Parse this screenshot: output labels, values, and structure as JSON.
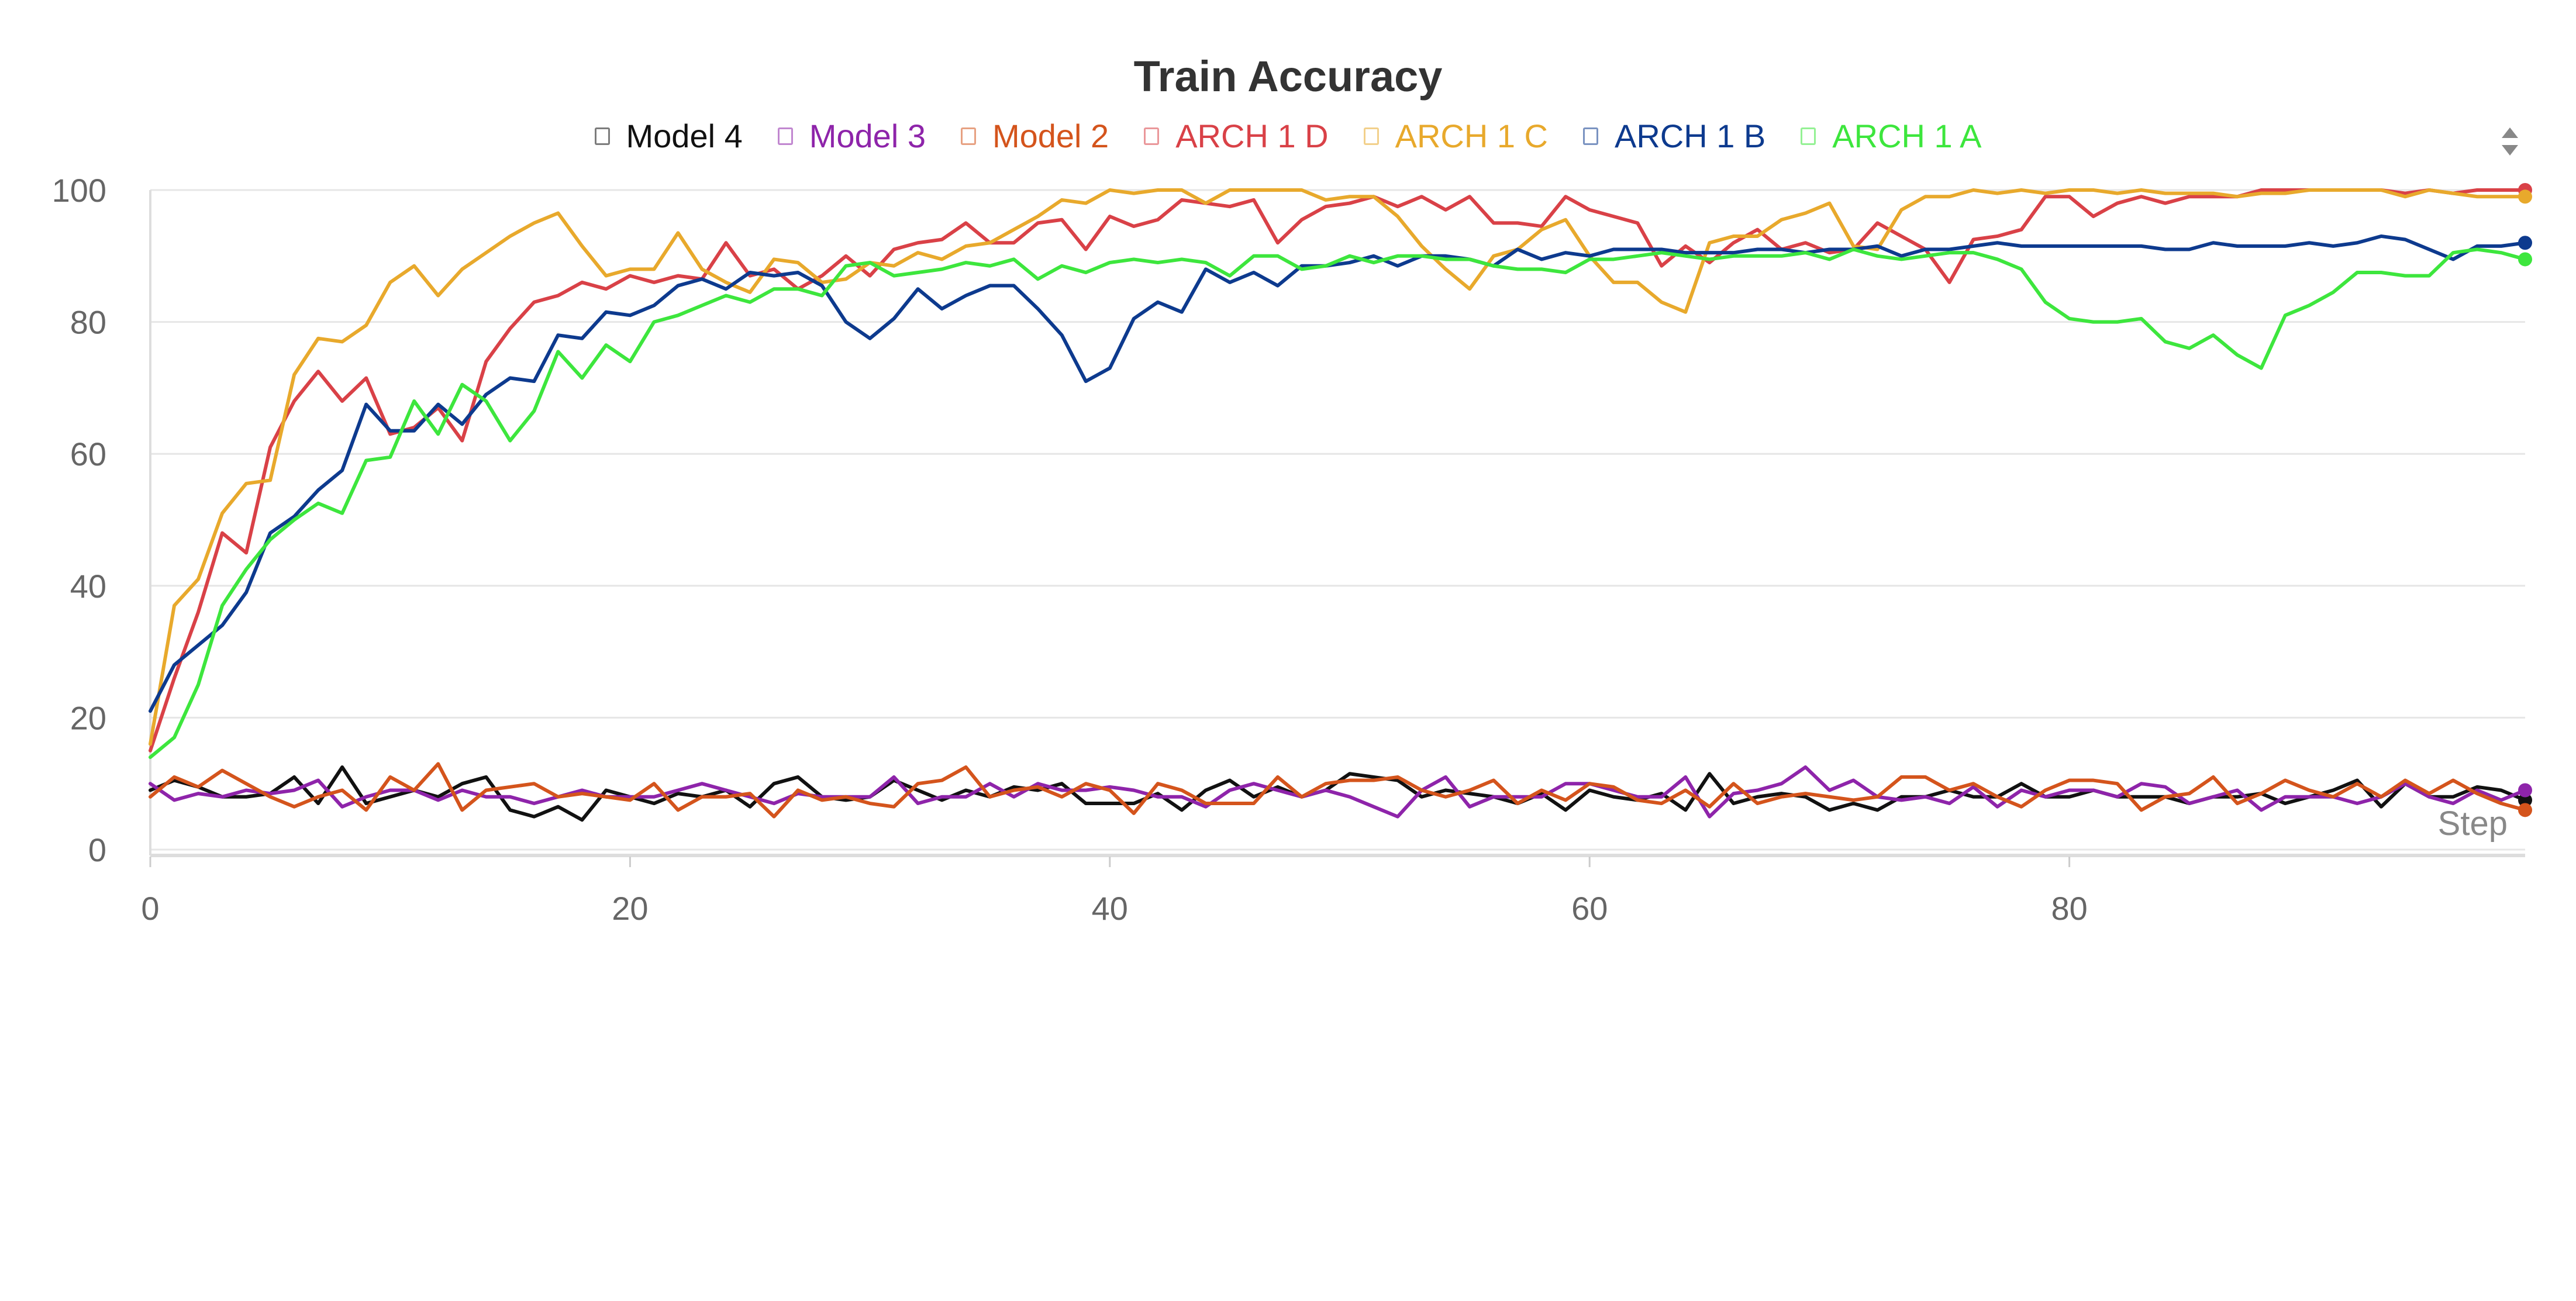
{
  "chart_data": {
    "type": "line",
    "title": "Train Accuracy",
    "xlabel": "Step",
    "ylabel": "",
    "xlim": [
      0,
      99
    ],
    "ylim": [
      0,
      100
    ],
    "xticks": [
      0,
      20,
      40,
      60,
      80
    ],
    "yticks": [
      0,
      20,
      40,
      60,
      80,
      100
    ],
    "grid": true,
    "legend_position": "top-center",
    "x": [
      0,
      1,
      2,
      3,
      4,
      5,
      6,
      7,
      8,
      9,
      10,
      11,
      12,
      13,
      14,
      15,
      16,
      17,
      18,
      19,
      20,
      21,
      22,
      23,
      24,
      25,
      26,
      27,
      28,
      29,
      30,
      31,
      32,
      33,
      34,
      35,
      36,
      37,
      38,
      39,
      40,
      41,
      42,
      43,
      44,
      45,
      46,
      47,
      48,
      49,
      50,
      51,
      52,
      53,
      54,
      55,
      56,
      57,
      58,
      59,
      60,
      61,
      62,
      63,
      64,
      65,
      66,
      67,
      68,
      69,
      70,
      71,
      72,
      73,
      74,
      75,
      76,
      77,
      78,
      79,
      80,
      81,
      82,
      83,
      84,
      85,
      86,
      87,
      88,
      89,
      90,
      91,
      92,
      93,
      94,
      95,
      96,
      97,
      98,
      99
    ],
    "series": [
      {
        "name": "Model 4",
        "color": "#111111",
        "values": [
          9,
          10.5,
          9.5,
          8,
          8,
          8.5,
          11,
          7,
          12.5,
          7,
          8,
          9,
          8,
          10,
          11,
          6,
          5,
          6.5,
          4.5,
          9,
          8,
          7,
          8.5,
          8,
          9,
          6.5,
          10,
          11,
          8,
          7.5,
          8,
          10.5,
          9,
          7.5,
          9,
          8,
          9.5,
          9,
          10,
          7,
          7,
          7,
          8.5,
          6,
          9,
          10.5,
          8,
          9.5,
          8,
          9,
          11.5,
          11,
          10.5,
          8,
          9,
          8.5,
          8,
          7,
          8.5,
          6,
          9,
          8,
          7.5,
          8.5,
          6,
          11.5,
          7,
          8,
          8.5,
          8,
          6,
          7,
          6,
          8,
          8,
          9,
          8,
          8,
          10,
          8,
          8,
          9,
          8,
          8,
          8,
          7,
          8,
          8,
          8.5,
          7,
          8,
          9,
          10.5,
          6.5,
          10,
          8,
          8,
          9.5,
          9,
          7.5
        ]
      },
      {
        "name": "Model 3",
        "color": "#8e24aa",
        "values": [
          10,
          7.5,
          8.5,
          8,
          9,
          8.5,
          9,
          10.5,
          6.5,
          8,
          9,
          9,
          7.5,
          9,
          8,
          8,
          7,
          8,
          9,
          8,
          8,
          8,
          9,
          10,
          9,
          8,
          7,
          8.5,
          8,
          8,
          8,
          11,
          7,
          8,
          8,
          10,
          8,
          10,
          9,
          9,
          9.5,
          9,
          8,
          8,
          6.5,
          9,
          10,
          9,
          8,
          9,
          8,
          6.5,
          5,
          9,
          11,
          6.5,
          8,
          8,
          8,
          10,
          10,
          9,
          8,
          8,
          11,
          5,
          8.5,
          9,
          10,
          12.5,
          9,
          10.5,
          8,
          7.5,
          8,
          7,
          9.5,
          6.5,
          9,
          8,
          9,
          9,
          8,
          10,
          9.5,
          7,
          8,
          9,
          6,
          8,
          8,
          8,
          7,
          8,
          10,
          8,
          7,
          9,
          7.5,
          9
        ]
      },
      {
        "name": "Model 2",
        "color": "#d4541c",
        "values": [
          8,
          11,
          9.5,
          12,
          10,
          8,
          6.5,
          8,
          9,
          6,
          11,
          9,
          13,
          6,
          9,
          9.5,
          10,
          8,
          8.5,
          8,
          7.5,
          10,
          6,
          8,
          8,
          8.5,
          5,
          9,
          7.5,
          8,
          7,
          6.5,
          10,
          10.5,
          12.5,
          8,
          9,
          9.5,
          8,
          10,
          9,
          5.5,
          10,
          9,
          7,
          7,
          7,
          11,
          8,
          10,
          10.5,
          10.5,
          11,
          9,
          8,
          9,
          10.5,
          7,
          9,
          7.5,
          10,
          9.5,
          7.5,
          7,
          9,
          6.5,
          10,
          7,
          8,
          8.5,
          8,
          7.5,
          8,
          11,
          11,
          9,
          10,
          8,
          6.5,
          9,
          10.5,
          10.5,
          10,
          6,
          8,
          8.5,
          11,
          7,
          8.5,
          10.5,
          9,
          8,
          10,
          8,
          10.5,
          8.5,
          10.5,
          8.5,
          7,
          6
        ]
      },
      {
        "name": "ARCH 1 D",
        "color": "#d94147",
        "values": [
          15,
          26,
          36,
          48,
          45,
          61,
          68,
          72.5,
          68,
          71.5,
          63,
          64,
          67,
          62,
          74,
          79,
          83,
          84,
          86,
          85,
          87,
          86,
          87,
          86.5,
          92,
          87,
          88,
          85,
          87,
          90,
          87,
          91,
          92,
          92.5,
          95,
          92,
          92,
          95,
          95.5,
          91,
          96,
          94.5,
          95.5,
          98.5,
          98,
          97.5,
          98.5,
          92,
          95.5,
          97.5,
          98,
          99,
          97.5,
          99,
          97,
          99,
          95,
          95,
          94.5,
          99,
          97,
          96,
          95,
          88.5,
          91.5,
          89,
          92,
          94,
          91,
          92,
          90.5,
          91,
          95,
          93,
          91,
          86,
          92.5,
          93,
          94,
          99,
          99,
          96,
          98,
          99,
          98,
          99,
          99,
          99,
          100,
          100,
          100,
          100,
          100,
          100,
          99.5,
          100,
          99.5,
          100,
          100,
          100
        ]
      },
      {
        "name": "ARCH 1 C",
        "color": "#e8a92c",
        "values": [
          16,
          37,
          41,
          51,
          55.5,
          56,
          72,
          77.5,
          77,
          79.5,
          86,
          88.5,
          84,
          88,
          90.5,
          93,
          95,
          96.5,
          91.5,
          87,
          88,
          88,
          93.5,
          88,
          86,
          84.5,
          89.5,
          89,
          86,
          86.5,
          89,
          88.5,
          90.5,
          89.5,
          91.5,
          92,
          94,
          96,
          98.5,
          98,
          100,
          99.5,
          100,
          100,
          98,
          100,
          100,
          100,
          100,
          98.5,
          99,
          99,
          96,
          91.5,
          88,
          85,
          90,
          91,
          94,
          95.5,
          90,
          86,
          86,
          83,
          81.5,
          92,
          93,
          93,
          95.5,
          96.5,
          98,
          91.5,
          91,
          97,
          99,
          99,
          100,
          99.5,
          100,
          99.5,
          100,
          100,
          99.5,
          100,
          99.5,
          99.5,
          99.5,
          99,
          99.5,
          99.5,
          100,
          100,
          100,
          100,
          99,
          100,
          99.5,
          99,
          99,
          99
        ]
      },
      {
        "name": "ARCH 1 B",
        "color": "#0d3a8e",
        "values": [
          21,
          28,
          31,
          34,
          39,
          48,
          50.5,
          54.5,
          57.5,
          67.5,
          63.5,
          63.5,
          67.5,
          64.5,
          69,
          71.5,
          71,
          78,
          77.5,
          81.5,
          81,
          82.5,
          85.5,
          86.5,
          85,
          87.5,
          87,
          87.5,
          85.5,
          80,
          77.5,
          80.5,
          85,
          82,
          84,
          85.5,
          85.5,
          82,
          78,
          71,
          73,
          80.5,
          83,
          81.5,
          88,
          86,
          87.5,
          85.5,
          88.5,
          88.5,
          89,
          90,
          88.5,
          90,
          90,
          89.5,
          88.5,
          91,
          89.5,
          90.5,
          90,
          91,
          91,
          91,
          90.5,
          90.5,
          90.5,
          91,
          91,
          90.5,
          91,
          91,
          91.5,
          90,
          91,
          91,
          91.5,
          92,
          91.5,
          91.5,
          91.5,
          91.5,
          91.5,
          91.5,
          91,
          91,
          92,
          91.5,
          91.5,
          91.5,
          92,
          91.5,
          92,
          93,
          92.5,
          91,
          89.5,
          91.5,
          91.5,
          92
        ]
      },
      {
        "name": "ARCH 1 A",
        "color": "#3de63d",
        "values": [
          14,
          17,
          25,
          37,
          42.5,
          47,
          50,
          52.5,
          51,
          59,
          59.5,
          68,
          63,
          70.5,
          68,
          62,
          66.5,
          75.5,
          71.5,
          76.5,
          74,
          80,
          81,
          82.5,
          84,
          83,
          85,
          85,
          84,
          88.5,
          89,
          87,
          87.5,
          88,
          89,
          88.5,
          89.5,
          86.5,
          88.5,
          87.5,
          89,
          89.5,
          89,
          89.5,
          89,
          87,
          90,
          90,
          88,
          88.5,
          90,
          89,
          90,
          90,
          89.5,
          89.5,
          88.5,
          88,
          88,
          87.5,
          89.5,
          89.5,
          90,
          90.5,
          90,
          89.5,
          90,
          90,
          90,
          90.5,
          89.5,
          91,
          90,
          89.5,
          90,
          90.5,
          90.5,
          89.5,
          88,
          83,
          80.5,
          80,
          80,
          80.5,
          77,
          76,
          78,
          75,
          73,
          81,
          82.5,
          84.5,
          87.5,
          87.5,
          87,
          87,
          90.5,
          91,
          90.5,
          89.5
        ]
      }
    ]
  }
}
